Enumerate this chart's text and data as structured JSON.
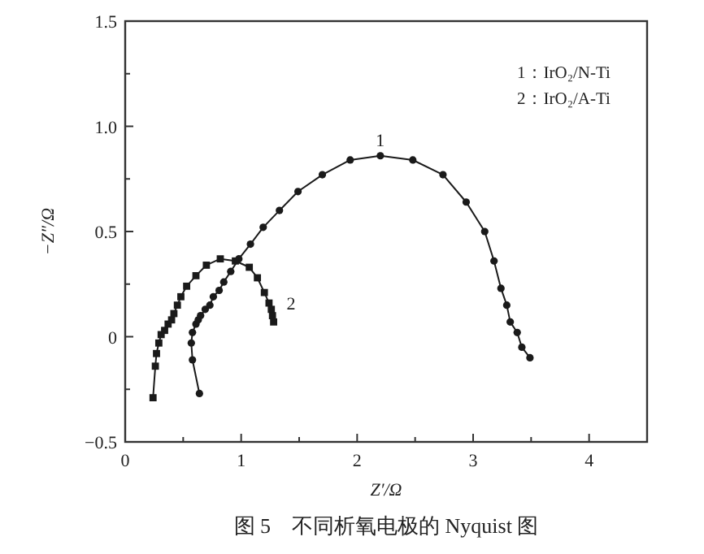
{
  "chart_data": {
    "type": "line",
    "title": "图 5　不同析氧电极的 Nyquist 图",
    "xlabel": "Z′/Ω",
    "ylabel": "−Z″/Ω",
    "xlim": [
      0,
      4.5
    ],
    "ylim": [
      -0.5,
      1.5
    ],
    "xticks": [
      0,
      {
        "value": 0.5,
        "label": null
      },
      1,
      {
        "value": 1.5,
        "label": null
      },
      2,
      {
        "value": 2.5,
        "label": null
      },
      3,
      {
        "value": 3.5,
        "label": null
      },
      4
    ],
    "yticks": [
      {
        "value": -0.5,
        "label": "−0.5"
      },
      {
        "value": -0.25,
        "label": null
      },
      0,
      {
        "value": 0.25,
        "label": null
      },
      0.5,
      {
        "value": 0.75,
        "label": null
      },
      {
        "value": 1,
        "label": "1.0"
      },
      {
        "value": 1.25,
        "label": null
      },
      1.5
    ],
    "grid": false,
    "annotations": [
      "1：IrO₂/N-Ti",
      "2：IrO₂/A-Ti",
      {
        "text": "1",
        "x": 2.2,
        "y": 0.86
      },
      {
        "text": "2",
        "x": 1.28,
        "y": 0.16
      }
    ],
    "series": [
      {
        "color": "#1a1a1a",
        "marker": "circle",
        "x": [
          0.64,
          0.58,
          0.57,
          0.58,
          0.61,
          0.63,
          0.65,
          0.69,
          0.73,
          0.76,
          0.81,
          0.85,
          0.91,
          0.98,
          1.08,
          1.19,
          1.33,
          1.49,
          1.7,
          1.94,
          2.2,
          2.48,
          2.74,
          2.94,
          3.1,
          3.18,
          3.24,
          3.29,
          3.32,
          3.38,
          3.42,
          3.49
        ],
        "values": [
          -0.27,
          -0.11,
          -0.03,
          0.02,
          0.06,
          0.08,
          0.1,
          0.13,
          0.15,
          0.19,
          0.22,
          0.26,
          0.31,
          0.37,
          0.44,
          0.52,
          0.6,
          0.69,
          0.77,
          0.84,
          0.86,
          0.84,
          0.77,
          0.64,
          0.5,
          0.36,
          0.23,
          0.15,
          0.07,
          0.02,
          -0.05,
          -0.1
        ]
      },
      {
        "color": "#1a1a1a",
        "marker": "square",
        "x": [
          0.24,
          0.26,
          0.27,
          0.29,
          0.31,
          0.34,
          0.37,
          0.4,
          0.42,
          0.45,
          0.48,
          0.53,
          0.61,
          0.7,
          0.82,
          0.95,
          1.07,
          1.14,
          1.2,
          1.24,
          1.26,
          1.27,
          1.28
        ],
        "values": [
          -0.29,
          -0.14,
          -0.08,
          -0.03,
          0.01,
          0.03,
          0.06,
          0.08,
          0.11,
          0.15,
          0.19,
          0.24,
          0.29,
          0.34,
          0.37,
          0.36,
          0.33,
          0.28,
          0.21,
          0.16,
          0.13,
          0.1,
          0.07
        ]
      }
    ]
  }
}
